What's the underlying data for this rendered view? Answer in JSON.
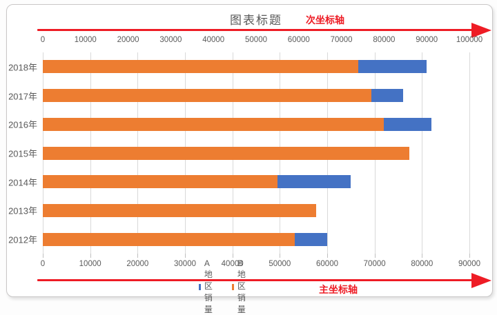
{
  "chart_data": {
    "type": "bar",
    "orientation": "horizontal",
    "title": "图表标题",
    "secondary_axis_label": "次坐标轴",
    "primary_axis_label": "主坐标轴",
    "categories": [
      "2018年",
      "2017年",
      "2016年",
      "2015年",
      "2014年",
      "2013年",
      "2012年"
    ],
    "series": [
      {
        "name": "A地区销量",
        "axis": "primary",
        "color": "#4472C4",
        "values": [
          81000,
          76000,
          82000,
          null,
          65000,
          null,
          60000
        ]
      },
      {
        "name": "B地区销量",
        "axis": "secondary",
        "color": "#ED7D31",
        "values": [
          74000,
          77000,
          80000,
          86000,
          55000,
          64000,
          59000
        ]
      }
    ],
    "render_note": "Series overlap from axis origin; blue A bars (primary axis) are visible only where they extend past the orange B bars (secondary axis). Null = fully hidden behind orange.",
    "primary_axis": {
      "position": "bottom",
      "min": 0,
      "max": 90000,
      "step": 10000,
      "tick_labels": [
        "0",
        "10000",
        "20000",
        "30000",
        "40000",
        "50000",
        "60000",
        "70000",
        "80000",
        "90000"
      ]
    },
    "secondary_axis": {
      "position": "top",
      "min": 0,
      "max": 100000,
      "step": 10000,
      "tick_labels": [
        "0",
        "10000",
        "20000",
        "30000",
        "40000",
        "50000",
        "60000",
        "70000",
        "80000",
        "90000",
        "100000"
      ]
    },
    "grid": true,
    "legend": {
      "position": "bottom",
      "entries": [
        {
          "label": "A地区销量",
          "color": "#4472C4"
        },
        {
          "label": "B地区销量",
          "color": "#ED7D31"
        }
      ]
    }
  },
  "colors": {
    "series_a_blue": "#4472C4",
    "series_b_orange": "#ED7D31",
    "red_accent": "#EE1C25",
    "gridline": "#D9D9D9",
    "text_gray": "#595959",
    "card_border": "#C9C7C7"
  }
}
